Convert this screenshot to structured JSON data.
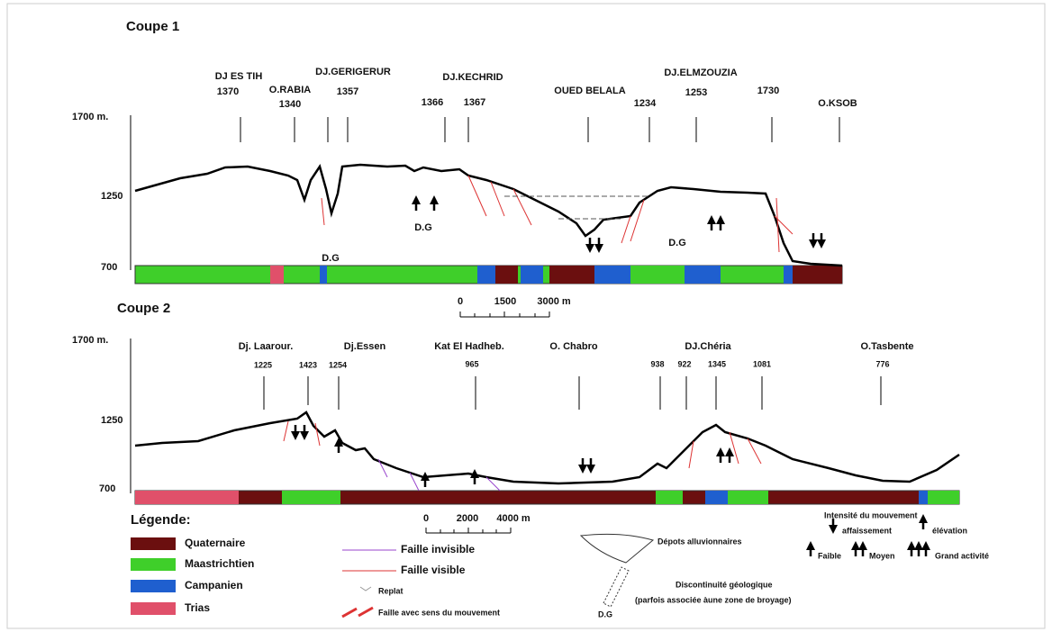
{
  "coupe_1": {
    "title": "Coupe 1",
    "elevation_axis": [
      "1700 m.",
      "1250",
      "700"
    ],
    "peaks": [
      "DJ ES TIH",
      "1370",
      "O.RABIA",
      "1340",
      "DJ.GERIGERUR",
      "1357",
      "DJ.KECHRID",
      "1366",
      "1367",
      "OUED BELALA",
      "1234",
      "DJ.ELMZOUZIA",
      "1253",
      "1730",
      "O.KSOB"
    ],
    "dg_labels": [
      "D.G",
      "D.G",
      "D.G"
    ],
    "scale": [
      "0",
      "1500",
      "3000 m"
    ]
  },
  "coupe_2": {
    "title": "Coupe 2",
    "elevation_axis": [
      "1700 m.",
      "1250",
      "700"
    ],
    "peaks": [
      "Dj. Laarour.",
      "Dj.Essen",
      "1225",
      "1423",
      "1254",
      "Kat El Hadheb.",
      "965",
      "O. Chabro",
      "DJ.Chéria",
      "938",
      "922",
      "1345",
      "1081",
      "O.Tasbente",
      "776"
    ],
    "scale": [
      "0",
      "2000",
      "4000 m"
    ]
  },
  "legend": {
    "title": "Légende:",
    "units": [
      "Quaternaire",
      "Maastrichtien",
      "Campanien",
      "Trias"
    ],
    "symbols": [
      "Faille invisible",
      "Faille visible",
      "Replat",
      "Faille avec sens du mouvement",
      "Dépots alluvionnaires",
      "Discontinuité géologique",
      "(parfois associée àune zone de broyage)",
      "D.G"
    ],
    "movement": {
      "title": "Intensité du mouvement",
      "subsidence": "affaissement",
      "uplift": "élévation",
      "levels": [
        "Faible",
        "Moyen",
        "Grand activité"
      ]
    }
  }
}
